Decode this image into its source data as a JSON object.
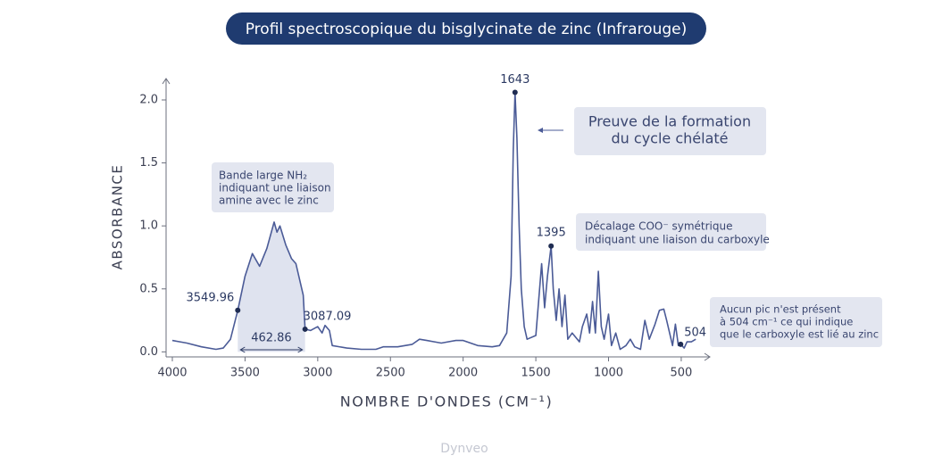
{
  "chart_data": {
    "type": "line",
    "title": "Profil spectroscopique du bisglycinate de zinc (Infrarouge)",
    "x_label": "NOMBRE D'ONDES (CM⁻¹)",
    "y_label": "ABSORBANCE",
    "color": "#4b5b97",
    "fill_color": "#dfe3ef",
    "x": [
      4000,
      3900,
      3800,
      3700,
      3650,
      3600,
      3550,
      3500,
      3450,
      3400,
      3350,
      3300,
      3280,
      3260,
      3220,
      3180,
      3150,
      3100,
      3087.09,
      3050,
      3000,
      2970,
      2950,
      2920,
      2900,
      2800,
      2700,
      2600,
      2550,
      2450,
      2350,
      2300,
      2250,
      2150,
      2050,
      2000,
      1900,
      1800,
      1750,
      1700,
      1670,
      1655,
      1643,
      1630,
      1615,
      1600,
      1580,
      1560,
      1500,
      1460,
      1440,
      1420,
      1395,
      1380,
      1360,
      1340,
      1320,
      1300,
      1280,
      1250,
      1200,
      1180,
      1150,
      1130,
      1110,
      1090,
      1070,
      1050,
      1030,
      1000,
      980,
      950,
      920,
      880,
      850,
      820,
      780,
      750,
      720,
      680,
      650,
      620,
      600,
      580,
      560,
      540,
      520,
      504,
      480,
      460,
      430,
      400
    ],
    "values": [
      0.09,
      0.07,
      0.04,
      0.02,
      0.03,
      0.1,
      0.33,
      0.6,
      0.78,
      0.68,
      0.82,
      1.03,
      0.95,
      1.0,
      0.85,
      0.74,
      0.7,
      0.45,
      0.18,
      0.17,
      0.2,
      0.15,
      0.21,
      0.17,
      0.05,
      0.03,
      0.02,
      0.02,
      0.04,
      0.04,
      0.06,
      0.1,
      0.09,
      0.07,
      0.09,
      0.09,
      0.05,
      0.04,
      0.05,
      0.15,
      0.6,
      1.6,
      2.06,
      1.7,
      1.0,
      0.5,
      0.2,
      0.1,
      0.13,
      0.7,
      0.35,
      0.6,
      0.84,
      0.5,
      0.25,
      0.5,
      0.2,
      0.45,
      0.1,
      0.15,
      0.08,
      0.2,
      0.3,
      0.15,
      0.4,
      0.15,
      0.64,
      0.2,
      0.1,
      0.3,
      0.05,
      0.15,
      0.02,
      0.05,
      0.1,
      0.04,
      0.02,
      0.25,
      0.1,
      0.22,
      0.33,
      0.34,
      0.25,
      0.15,
      0.05,
      0.22,
      0.05,
      0.06,
      0.03,
      0.08,
      0.08,
      0.1
    ],
    "xlim": [
      4043,
      303
    ],
    "ylim": [
      -0.04,
      2.17
    ],
    "xticks": [
      4000,
      3500,
      3000,
      2500,
      2000,
      1500,
      1000,
      500
    ],
    "yticks": [
      {
        "value": 0,
        "label": "0.0"
      },
      {
        "value": 0.5,
        "label": "0.5"
      },
      {
        "value": 1,
        "label": "1.0"
      },
      {
        "value": 1.5,
        "label": "1.5"
      },
      {
        "value": 2,
        "label": "2.0"
      }
    ],
    "points": [
      {
        "x": 3549.96,
        "y": 0.33
      },
      {
        "x": 3087.09,
        "y": 0.18
      },
      {
        "x": 1643,
        "y": 2.06
      },
      {
        "x": 1395,
        "y": 0.84
      },
      {
        "x": 504,
        "y": 0.06
      }
    ],
    "band_width": 462.86,
    "annotations": [
      [
        "Bande large NH₂",
        "indiquant une liaison",
        "amine avec le zinc"
      ],
      [
        "Preuve de la formation",
        "du cycle chélaté"
      ],
      [
        "Décalage COO⁻ symétrique",
        "indiquant une liaison du carboxyle"
      ],
      [
        "Aucun pic n'est présent",
        "à 504 cm⁻¹ ce qui indique",
        "que le carboxyle est lié au zinc"
      ]
    ],
    "watermark": "Dynveo"
  }
}
